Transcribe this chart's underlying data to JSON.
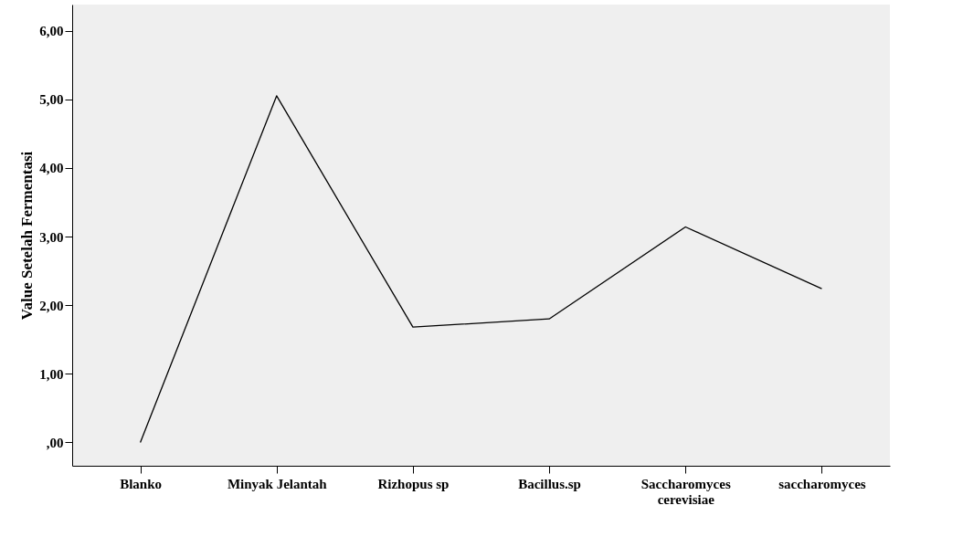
{
  "chart_data": {
    "type": "line",
    "ylabel": "Value Setelah Fermentasi",
    "categories": [
      "Blanko",
      "Minyak Jelantah",
      "Rizhopus sp",
      "Bacillus.sp",
      "Saccharomyces cerevisiae",
      "saccharomyces"
    ],
    "series": [
      {
        "color": "#000000",
        "values": [
          0.0,
          5.05,
          1.68,
          1.8,
          3.14,
          2.24
        ]
      }
    ],
    "ylim": [
      -0.34,
      6.38
    ],
    "yticks": [
      {
        "value": 0,
        "label": ",00"
      },
      {
        "value": 1,
        "label": "1,00"
      },
      {
        "value": 2,
        "label": "2,00"
      },
      {
        "value": 3,
        "label": "3,00"
      },
      {
        "value": 4,
        "label": "4,00"
      },
      {
        "value": 5,
        "label": "5,00"
      },
      {
        "value": 6,
        "label": "6,00"
      }
    ],
    "line_style": "solid"
  }
}
